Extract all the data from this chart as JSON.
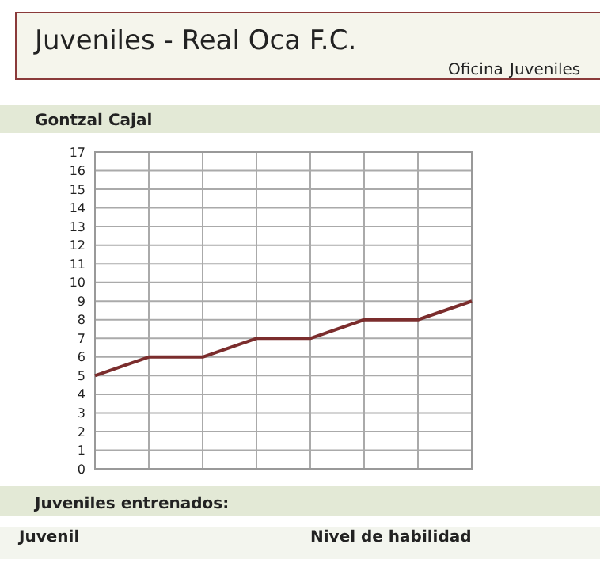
{
  "chart_data": {
    "type": "line",
    "title": "Gontzal Cajal",
    "subtitle": "Juveniles - Real Oca F.C.",
    "annotations": [
      "Oficina",
      "Juveniles",
      "Juveniles entrenados:",
      "Juvenil",
      "Nivel de habilidad"
    ],
    "categories": [
      null,
      null,
      null,
      null,
      null,
      null,
      null,
      null
    ],
    "series": [
      {
        "color": "#7b2d2d",
        "values": [
          5,
          6,
          6,
          7,
          7,
          8,
          8,
          9
        ]
      }
    ],
    "ylim": [
      0,
      17
    ],
    "yticks": [
      0,
      1,
      2,
      3,
      4,
      5,
      6,
      7,
      8,
      9,
      10,
      11,
      12,
      13,
      14,
      15,
      16,
      17
    ],
    "grid": true,
    "tick_labels": "y",
    "marker": "none",
    "line_style": "solid"
  }
}
